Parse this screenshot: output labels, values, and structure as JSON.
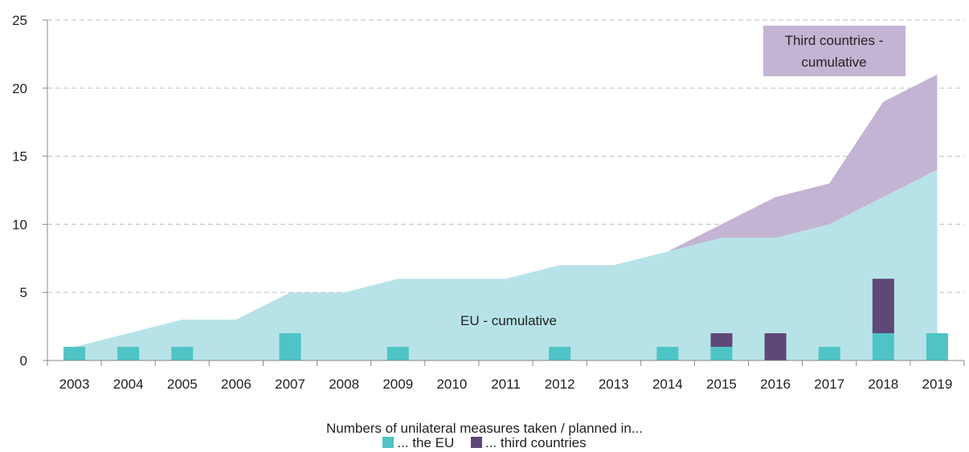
{
  "chart_data": {
    "type": "bar",
    "categories": [
      "2003",
      "2004",
      "2005",
      "2006",
      "2007",
      "2008",
      "2009",
      "2010",
      "2011",
      "2012",
      "2013",
      "2014",
      "2015",
      "2016",
      "2017",
      "2018",
      "2019"
    ],
    "series": [
      {
        "name": "... the EU",
        "kind": "bar",
        "values": [
          1,
          1,
          1,
          0,
          2,
          0,
          1,
          0,
          0,
          1,
          0,
          1,
          1,
          0,
          1,
          2,
          2
        ]
      },
      {
        "name": "... third countries",
        "kind": "bar",
        "values": [
          0,
          0,
          0,
          0,
          0,
          0,
          0,
          0,
          0,
          0,
          0,
          0,
          1,
          2,
          0,
          4,
          0
        ]
      },
      {
        "name": "EU - cumulative",
        "kind": "area",
        "values": [
          1,
          2,
          3,
          3,
          5,
          5,
          6,
          6,
          6,
          7,
          7,
          8,
          9,
          9,
          10,
          12,
          14
        ]
      },
      {
        "name": "Third countries - cumulative",
        "kind": "area",
        "values": [
          0,
          0,
          0,
          0,
          0,
          0,
          0,
          0,
          0,
          0,
          0,
          0,
          1,
          3,
          3,
          7,
          7
        ]
      }
    ],
    "ylim": [
      0,
      25
    ],
    "yticks": [
      0,
      5,
      10,
      15,
      20,
      25
    ],
    "grid": true,
    "annotations": {
      "eu_cumulative": "EU - cumulative",
      "third_cumulative_line1": "Third countries -",
      "third_cumulative_line2": "cumulative"
    },
    "legend": {
      "title": "Numbers of unilateral measures taken / planned in...",
      "placement": "bottom",
      "items": [
        "... the EU",
        "... third countries"
      ]
    },
    "colors": {
      "eu_bar": "#4fc4c6",
      "third_bar": "#5e4878",
      "eu_area": "#b7e3e8",
      "third_area": "#c3b4d3",
      "grid": "#c8c8c8",
      "axis": "#888888"
    }
  }
}
